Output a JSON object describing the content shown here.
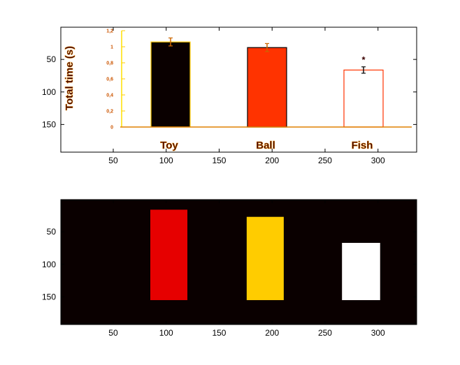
{
  "chart_data": [
    {
      "type": "image",
      "xlim": [
        0.5,
        336.5
      ],
      "ylim": [
        0.5,
        192.5
      ],
      "y_reversed": true,
      "x_ticks": [
        50,
        100,
        150,
        200,
        250,
        300
      ],
      "y_ticks": [
        50,
        100,
        150
      ],
      "embedded_bar_chart": {
        "type": "bar",
        "ylabel": "Total time (s)",
        "ylim": [
          0,
          1.2
        ],
        "y_ticks": [
          "0",
          "0,2",
          "0,4",
          "0,6",
          "0,8",
          "1",
          "1,2"
        ],
        "categories": [
          "Toy",
          "Ball",
          "Fish"
        ],
        "values": [
          1.06,
          0.99,
          0.71
        ],
        "errors": [
          0.05,
          0.05,
          0.04
        ],
        "bar_colors": [
          "#0a0000",
          "#ff3300",
          "#ffffff"
        ],
        "bar_edge_colors": [
          "#ffcc00",
          "#000000",
          "#ff3300"
        ],
        "annotations": [
          {
            "category": "Fish",
            "text": "*"
          }
        ]
      }
    },
    {
      "type": "image",
      "xlim": [
        0.5,
        336.5
      ],
      "ylim": [
        0.5,
        192.5
      ],
      "y_reversed": true,
      "x_ticks": [
        50,
        100,
        150,
        200,
        250,
        300
      ],
      "y_ticks": [
        50,
        100,
        150
      ],
      "background": "#0a0000",
      "regions": [
        {
          "name": "Toy",
          "color": "#e60000",
          "x": [
            85,
            120
          ],
          "y": [
            16,
            155
          ]
        },
        {
          "name": "Ball",
          "color": "#ffcc00",
          "x": [
            176,
            211
          ],
          "y": [
            27,
            155
          ]
        },
        {
          "name": "Fish",
          "color": "#ffffff",
          "x": [
            266,
            302
          ],
          "y": [
            67,
            155
          ]
        }
      ]
    }
  ]
}
